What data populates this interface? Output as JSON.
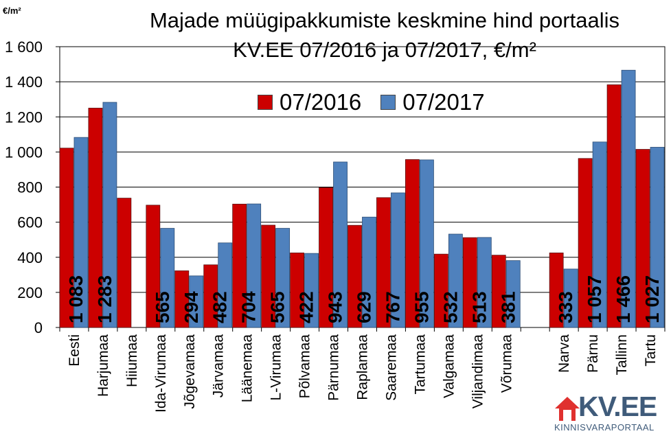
{
  "unit_label": "€/m²",
  "chart_data": {
    "type": "bar",
    "title_line1": "Majade müügipakkumiste keskmine hind portaalis",
    "title_line2": "KV.EE 07/2016 ja 07/2017, €/m²",
    "categories": [
      "Eesti",
      "Harjumaa",
      "Hiiumaa",
      "Ida-Virumaa",
      "Jõgevamaa",
      "Järvamaa",
      "Läänemaa",
      "L-Virumaa",
      "Põlvamaa",
      "Pärnumaa",
      "Raplamaa",
      "Saaremaa",
      "Tartumaa",
      "Valgamaa",
      "Viljandimaa",
      "Võrumaa",
      "",
      "Narva",
      "Pärnu",
      "Tallinn",
      "Tartu"
    ],
    "series": [
      {
        "name": "07/2016",
        "color": "#cc0000",
        "values": [
          1022,
          1250,
          737,
          697,
          323,
          357,
          703,
          583,
          425,
          797,
          582,
          740,
          957,
          418,
          512,
          412,
          null,
          425,
          963,
          1383,
          1015
        ]
      },
      {
        "name": "07/2017",
        "color": "#4f81bd",
        "values": [
          1083,
          1283,
          null,
          565,
          294,
          482,
          704,
          565,
          422,
          943,
          629,
          767,
          955,
          532,
          513,
          381,
          null,
          333,
          1057,
          1466,
          1027
        ]
      }
    ],
    "data_labels": [
      "1 083",
      "1 283",
      "",
      "565",
      "294",
      "482",
      "704",
      "565",
      "422",
      "943",
      "629",
      "767",
      "955",
      "532",
      "513",
      "381",
      "",
      "333",
      "1 057",
      "1 466",
      "1 027"
    ],
    "y_ticks": [
      "0",
      "200",
      "400",
      "600",
      "800",
      "1 000",
      "1 200",
      "1 400",
      "1 600"
    ],
    "ylim": [
      0,
      1600
    ],
    "grid": true,
    "legend_position": "top-center"
  },
  "logo": {
    "name": "KV.EE",
    "subtitle": "KINNISVARAPORTAAL",
    "color": "#3f5b7a",
    "house_color": "#e0312f"
  }
}
